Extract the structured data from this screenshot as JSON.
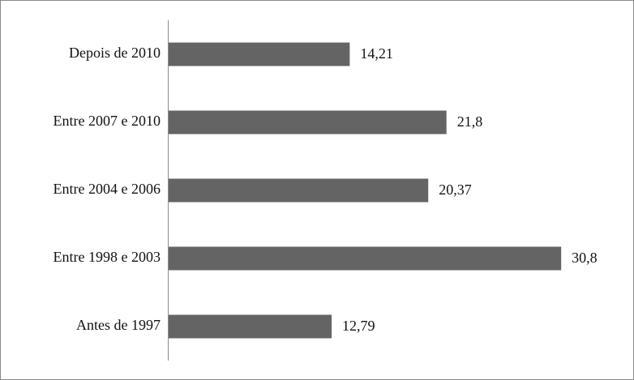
{
  "chart_data": {
    "type": "hbar",
    "categories": [
      "Depois de 2010",
      "Entre 2007 e 2010",
      "Entre 2004 e 2006",
      "Entre 1998 e 2003",
      "Antes de 1997"
    ],
    "values": [
      14.21,
      21.8,
      20.37,
      30.8,
      12.79
    ],
    "value_labels": [
      "14,21",
      "21,8",
      "20,37",
      "30,8",
      "12,79"
    ],
    "color": "#646464"
  }
}
